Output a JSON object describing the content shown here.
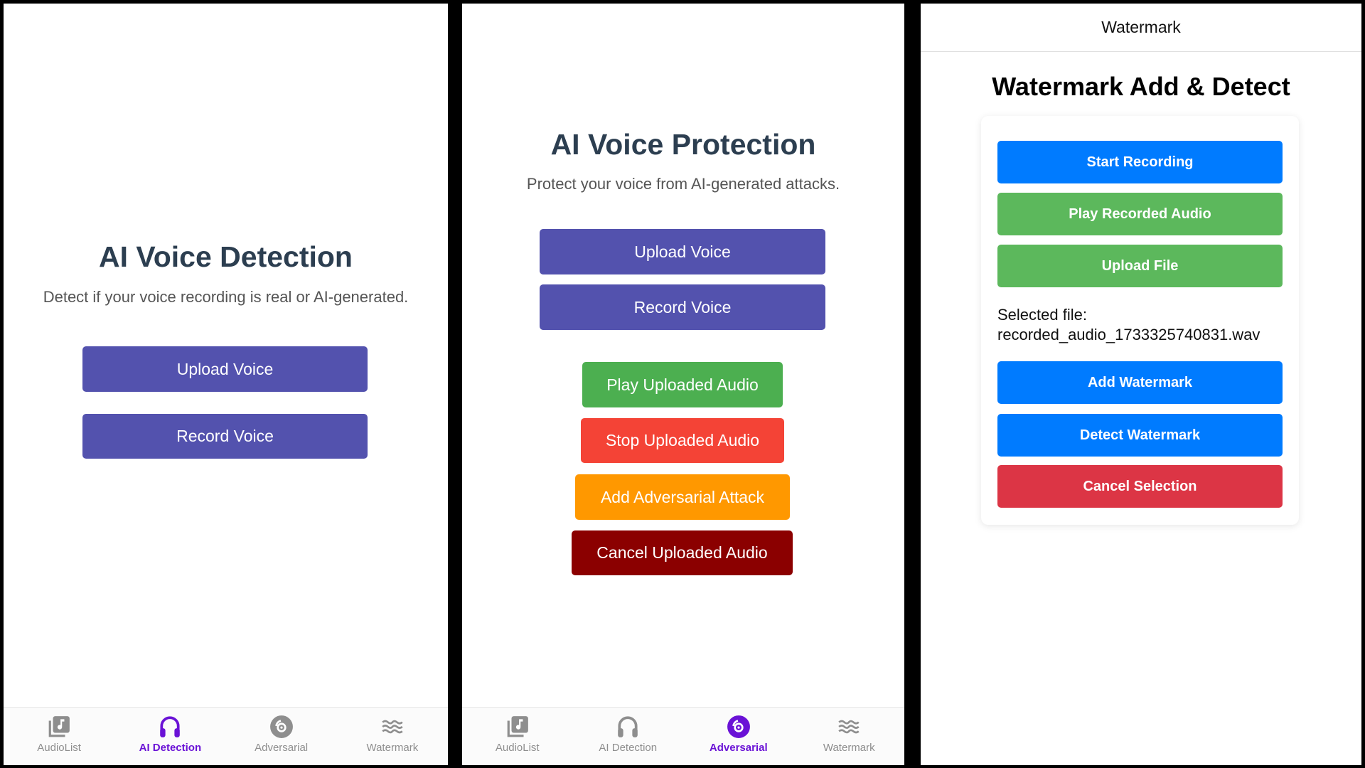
{
  "tabs": [
    {
      "label": "AudioList",
      "icon": "music-library-icon"
    },
    {
      "label": "AI Detection",
      "icon": "headphones-icon"
    },
    {
      "label": "Adversarial",
      "icon": "disc-icon"
    },
    {
      "label": "Watermark",
      "icon": "waves-icon"
    }
  ],
  "colors": {
    "active_tab": "#6a12d6",
    "inactive_tab": "#8e8e8e",
    "purple": "#5352ae",
    "green": "#4caf50",
    "red": "#f44336",
    "orange": "#ff9800",
    "darkred": "#8b0000",
    "blue": "#007bff",
    "wm_green": "#5cb85c",
    "wm_red": "#dc3545"
  },
  "detection": {
    "title": "AI Voice Detection",
    "subtitle": "Detect if your voice recording is real or AI-generated.",
    "upload": "Upload Voice",
    "record": "Record Voice",
    "active_tab": "AI Detection"
  },
  "protection": {
    "title": "AI Voice Protection",
    "subtitle": "Protect your voice from AI-generated attacks.",
    "upload": "Upload Voice",
    "record": "Record Voice",
    "play": "Play Uploaded Audio",
    "stop": "Stop Uploaded Audio",
    "attack": "Add Adversarial Attack",
    "cancel": "Cancel Uploaded Audio",
    "active_tab": "Adversarial"
  },
  "watermark": {
    "header": "Watermark",
    "title": "Watermark Add & Detect",
    "start": "Start Recording",
    "play": "Play Recorded Audio",
    "upload": "Upload File",
    "selected_label": "Selected file:",
    "selected_file": "recorded_audio_1733325740831.wav",
    "add": "Add Watermark",
    "detect": "Detect Watermark",
    "cancel": "Cancel Selection"
  }
}
